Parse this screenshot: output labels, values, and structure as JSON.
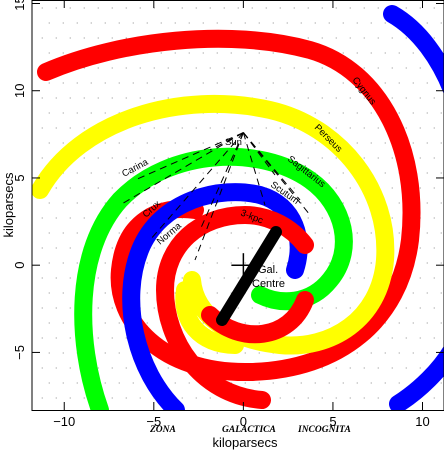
{
  "chart": {
    "type": "diagram",
    "xlabel": "kiloparsecs",
    "ylabel": "kiloparsecs",
    "xlim": [
      -11.8,
      11.2
    ],
    "ylim": [
      -8.3,
      15.2
    ],
    "xticks": [
      -10,
      -5,
      0,
      5,
      10
    ],
    "yticks": [
      -5,
      0,
      5,
      10,
      15
    ],
    "xtick_labels": [
      "−10",
      "−5",
      "0",
      "5",
      "10"
    ],
    "ytick_labels": [
      "−5",
      "0",
      "5",
      "10",
      "15"
    ],
    "grid": "dotted background"
  },
  "arms": [
    {
      "name": "Norma",
      "label": "Norma",
      "color": "#ff0000"
    },
    {
      "name": "Crux",
      "label": "Crux",
      "color": "#0000ff"
    },
    {
      "name": "Carina",
      "label": "Carina",
      "color": "#00ff00"
    },
    {
      "name": "Sagittarius",
      "label": "Sagittarius",
      "color": "#00ff00"
    },
    {
      "name": "Perseus",
      "label": "Perseus",
      "color": "#ffff00"
    },
    {
      "name": "Scutum",
      "label": "Scutum",
      "color": "#0000ff"
    },
    {
      "name": "Cygnus",
      "label": "Cygnus",
      "color": "#ff0000"
    },
    {
      "name": "3-kpc",
      "label": "3-kpc",
      "color": "#ff0000"
    }
  ],
  "sun": {
    "label": "Sun",
    "x": 0.0,
    "y": 7.6
  },
  "galactic_centre": {
    "line1": "Gal.",
    "line2": "Centre",
    "x": 0.0,
    "y": 0.0
  },
  "bar": {
    "color": "#000000"
  },
  "zone_of_avoidance": [
    "ZONA",
    "GALACTICA",
    "INCOGNITA"
  ]
}
